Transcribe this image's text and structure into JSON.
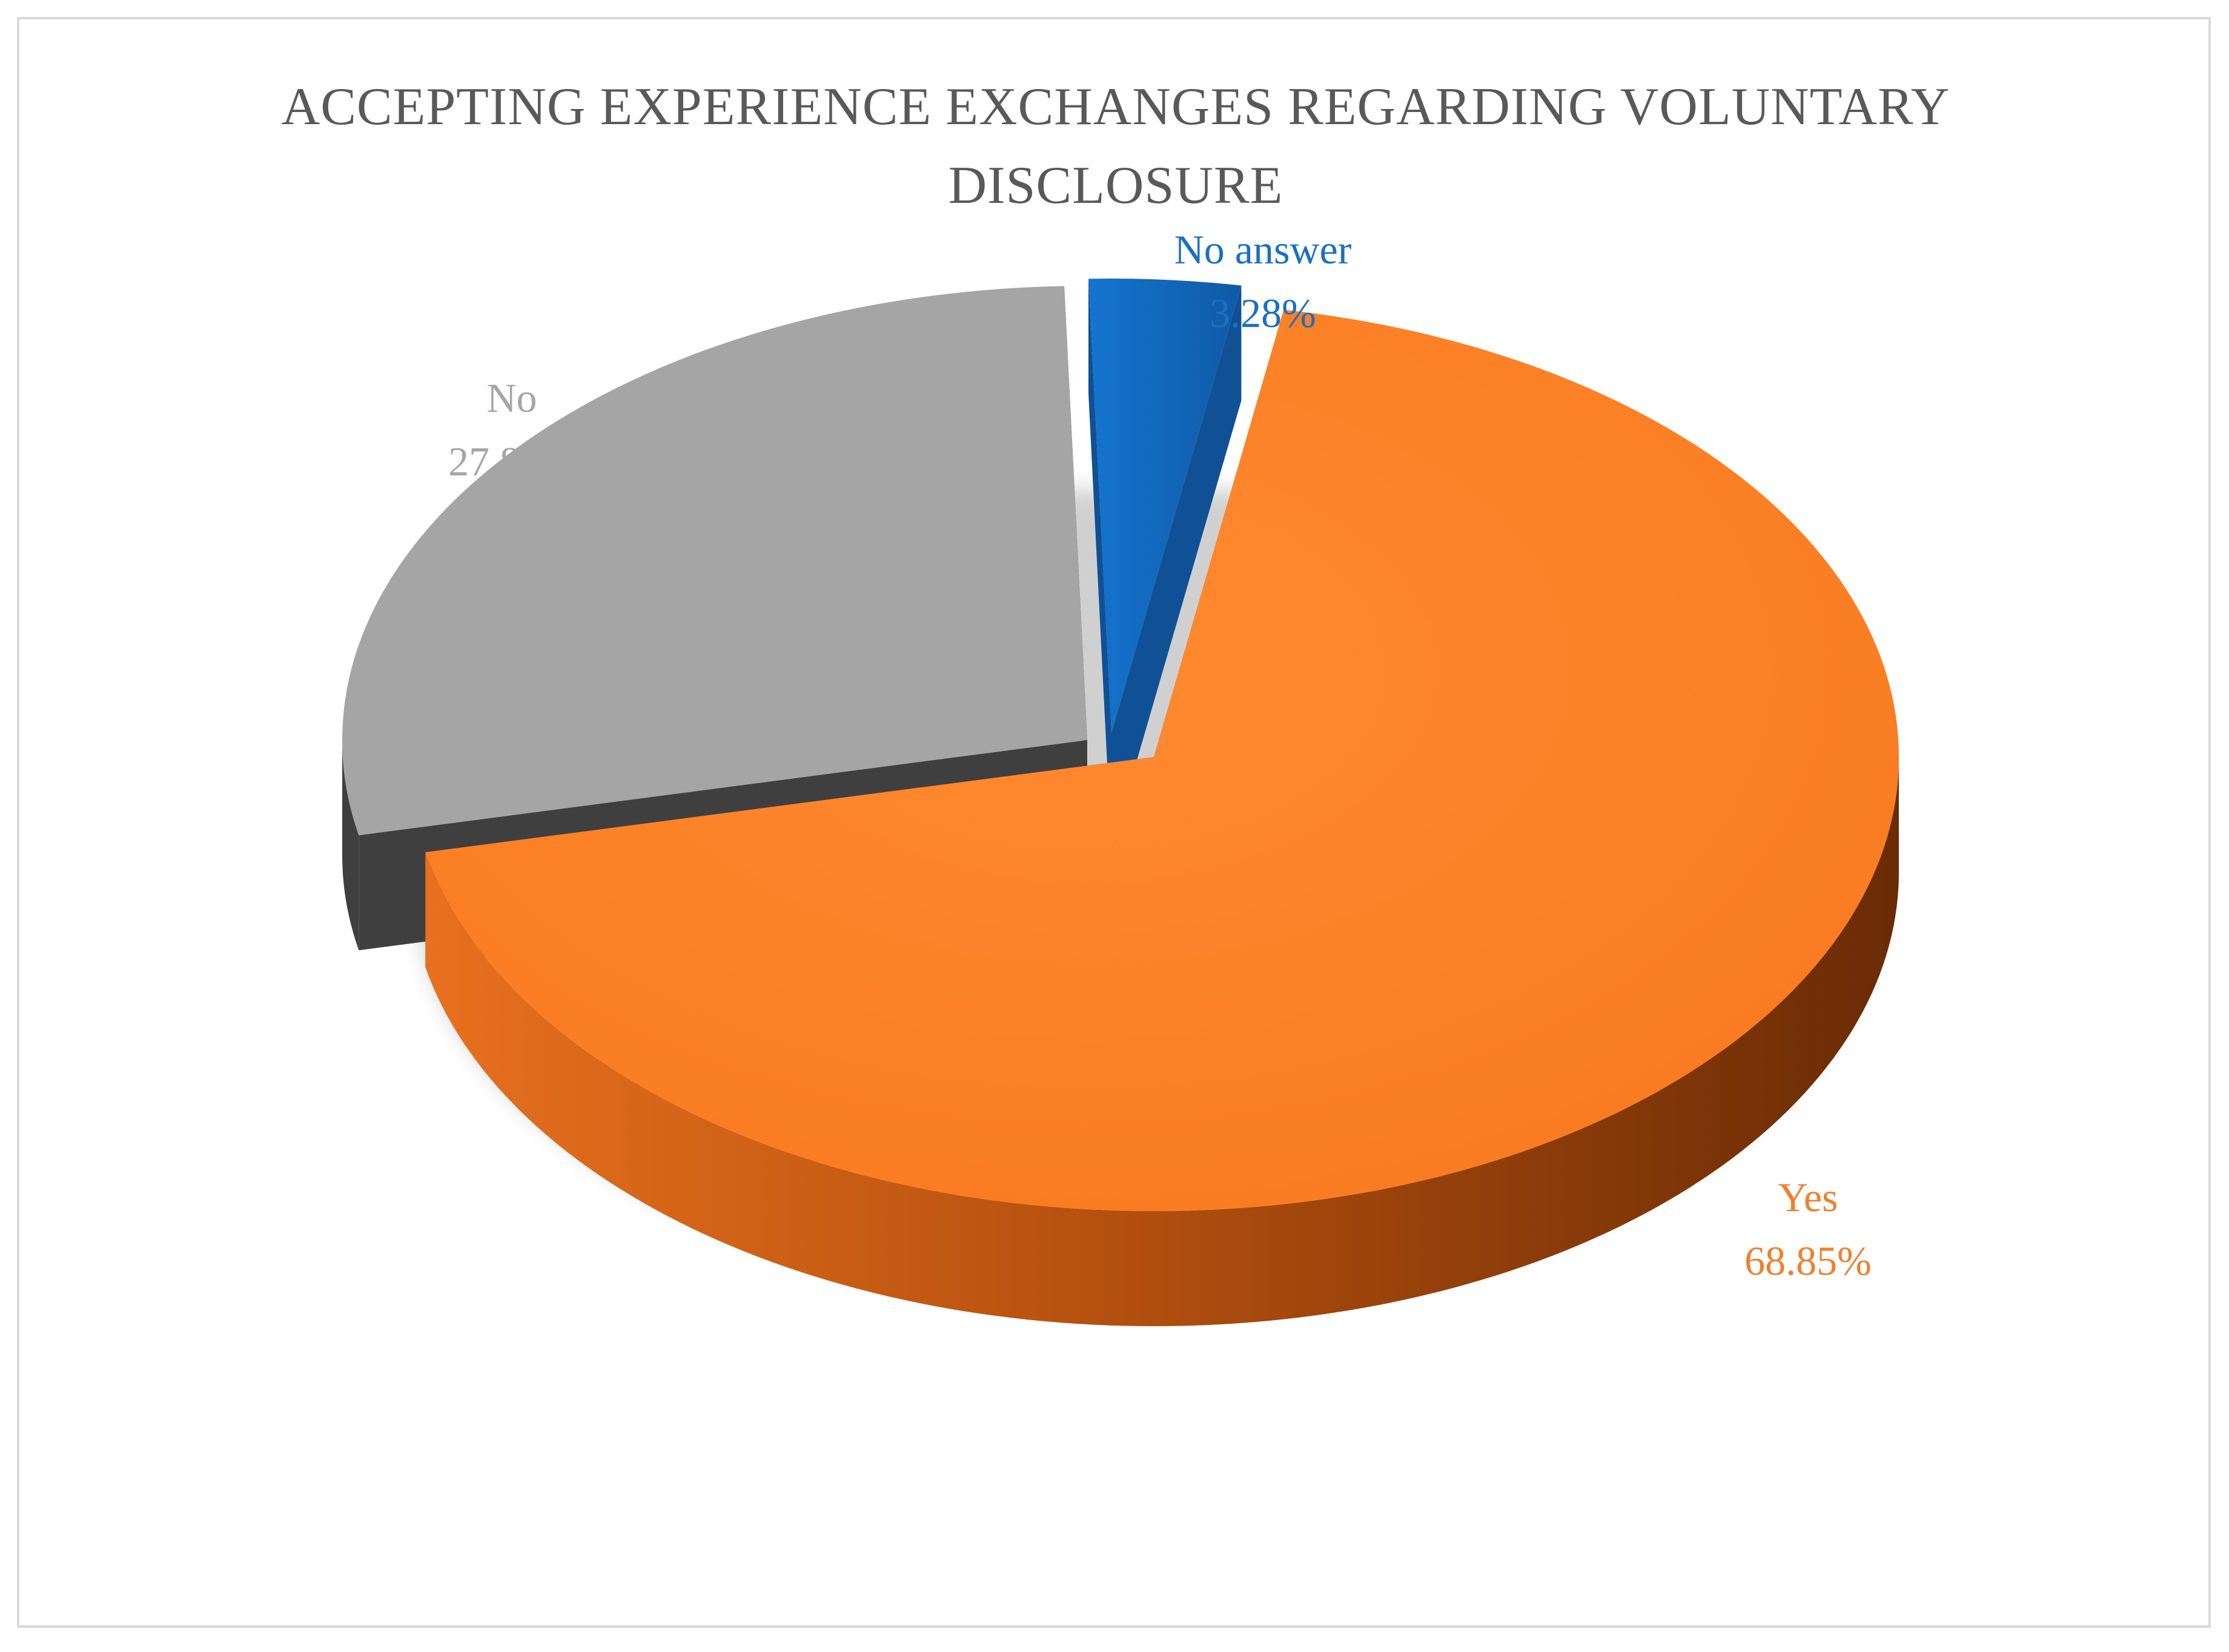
{
  "chart_data": {
    "type": "pie",
    "title": "ACCEPTING EXPERIENCE EXCHANGES REGARDING VOLUNTARY DISCLOSURE",
    "categories": [
      "Yes",
      "No",
      "No answer"
    ],
    "values": [
      68.85,
      27.87,
      3.28
    ],
    "value_labels": [
      "68.85%",
      "27.87%",
      "3.28%"
    ],
    "colors": [
      "#fd7e24",
      "#a5a5a5",
      "#1370c8"
    ],
    "side_colors": [
      "#a7460c",
      "#3f3f3f",
      "#0f5194"
    ],
    "label_colors": [
      "#f07f2e",
      "#a5a5a5",
      "#1a6fc4"
    ],
    "style": "3d-exploded",
    "legend": "none"
  }
}
